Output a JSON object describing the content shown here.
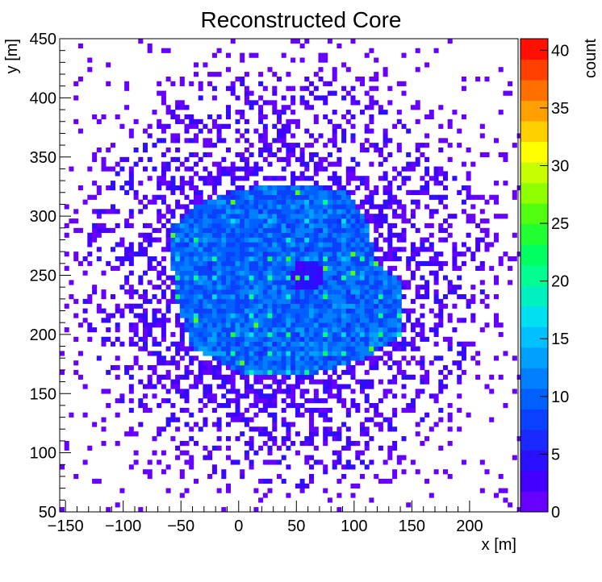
{
  "chart_data": {
    "type": "heatmap",
    "title": "Reconstructed Core",
    "xlabel": "x [m]",
    "ylabel": "y [m]",
    "zlabel": "count",
    "xlim": [
      -155,
      242
    ],
    "ylim": [
      50,
      450
    ],
    "zlim": [
      0,
      41
    ],
    "x_ticks": [
      -150,
      -100,
      -50,
      0,
      50,
      100,
      150,
      200
    ],
    "x_tick_labels": [
      "−150",
      "−100",
      "−50",
      "0",
      "50",
      "100",
      "150",
      "200"
    ],
    "y_ticks": [
      50,
      100,
      150,
      200,
      250,
      300,
      350,
      400,
      450
    ],
    "y_tick_labels": [
      "50",
      "100",
      "150",
      "200",
      "250",
      "300",
      "350",
      "400",
      "450"
    ],
    "z_ticks": [
      0,
      5,
      10,
      15,
      20,
      25,
      30,
      35,
      40
    ],
    "z_tick_labels": [
      "0",
      "5",
      "10",
      "15",
      "20",
      "25",
      "30",
      "35",
      "40"
    ],
    "grid": false,
    "colormap": [
      "#6600ff",
      "#4400ff",
      "#2a10ff",
      "#1a2aff",
      "#0a40ff",
      "#0060ff",
      "#0080ff",
      "#00a0ff",
      "#00c0ff",
      "#00e0f0",
      "#00f0c0",
      "#00ff90",
      "#00ff60",
      "#20ff30",
      "#50ff10",
      "#90ff00",
      "#c8ff00",
      "#ffff00",
      "#ffd000",
      "#ffa000",
      "#ff7000",
      "#ff4000",
      "#ff1000"
    ],
    "dense_region": {
      "polygon": [
        [
          -60,
          290
        ],
        [
          -35,
          310
        ],
        [
          0,
          322
        ],
        [
          40,
          328
        ],
        [
          90,
          322
        ],
        [
          110,
          300
        ],
        [
          118,
          262
        ],
        [
          140,
          245
        ],
        [
          142,
          200
        ],
        [
          110,
          180
        ],
        [
          60,
          165
        ],
        [
          0,
          168
        ],
        [
          -40,
          188
        ],
        [
          -55,
          230
        ],
        [
          -60,
          290
        ]
      ],
      "typical_count": 10,
      "peak_count": 25,
      "hole_center": [
        60,
        250
      ]
    }
  }
}
